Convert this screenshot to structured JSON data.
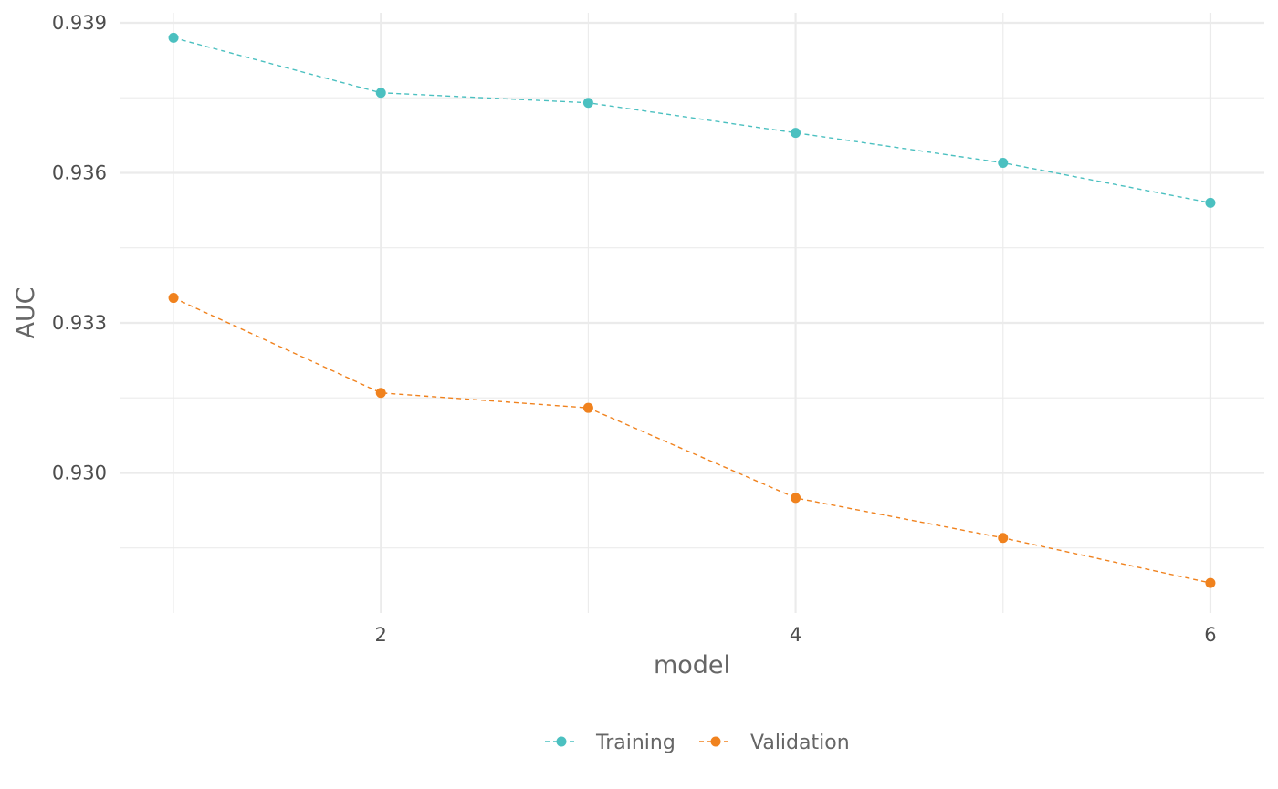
{
  "chart_data": {
    "type": "line",
    "title": "",
    "xlabel": "model",
    "ylabel": "AUC",
    "x": [
      1,
      2,
      3,
      4,
      5,
      6
    ],
    "x_ticks": [
      2,
      4,
      6
    ],
    "x_tick_labels": [
      "2",
      "4",
      "6"
    ],
    "xlim": [
      0.74,
      6.26
    ],
    "y_ticks": [
      0.93,
      0.933,
      0.936,
      0.939
    ],
    "y_tick_labels": [
      "0.930",
      "0.933",
      "0.936",
      "0.939"
    ],
    "ylim": [
      0.9272,
      0.9392
    ],
    "grid": true,
    "legend_position": "bottom",
    "line_style": "dashed",
    "series": [
      {
        "name": "Training",
        "color": "#4BC0C0",
        "values": [
          0.9387,
          0.9376,
          0.9374,
          0.9368,
          0.9362,
          0.9354
        ]
      },
      {
        "name": "Validation",
        "color": "#F0821E",
        "values": [
          0.9335,
          0.9316,
          0.9313,
          0.9295,
          0.9287,
          0.9278
        ]
      }
    ]
  }
}
